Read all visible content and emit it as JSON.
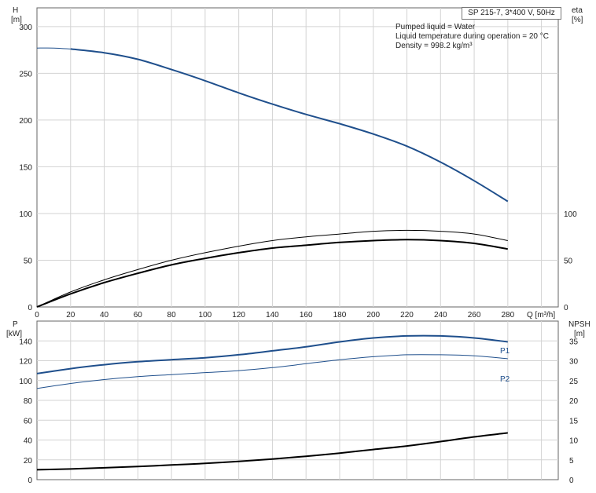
{
  "header": {
    "model": "SP 215-7, 3*400 V, 50Hz",
    "info": [
      "Pumped liquid = Water",
      "Liquid temperature during operation = 20 °C",
      "Density = 998.2 kg/m³"
    ]
  },
  "colors": {
    "head_curve": "#1f4f8c",
    "eta_curve": "#000000",
    "power_curve": "#1f4f8c",
    "npsh_curve": "#000000",
    "grid": "#d3d3d3",
    "axis": "#666666"
  },
  "chart_data": [
    {
      "type": "line",
      "panel": "top",
      "left_axis": {
        "label_top": "H",
        "label_unit": "[m]",
        "ticks": [
          "0",
          "50",
          "100",
          "150",
          "200",
          "250",
          "300"
        ],
        "ylim": [
          0,
          320
        ]
      },
      "right_axis": {
        "label_top": "eta",
        "label_unit": "[%]",
        "ticks": [
          "0",
          "50",
          "100"
        ]
      },
      "x_axis": {
        "label": "Q [m³/h]",
        "ticks": [
          "0",
          "20",
          "40",
          "60",
          "80",
          "100",
          "120",
          "140",
          "160",
          "180",
          "200",
          "220",
          "240",
          "260",
          "280"
        ],
        "xlim": [
          0,
          310
        ]
      },
      "grid": true,
      "series": [
        {
          "role": "head_extrapolated",
          "axis": "left",
          "style": "thin",
          "points": [
            [
              0,
              277
            ],
            [
              10,
              277
            ],
            [
              20,
              276
            ]
          ]
        },
        {
          "role": "head",
          "axis": "left",
          "style": "thick",
          "points": [
            [
              20,
              276
            ],
            [
              40,
              272
            ],
            [
              60,
              265
            ],
            [
              80,
              254
            ],
            [
              100,
              242
            ],
            [
              120,
              229
            ],
            [
              140,
              217
            ],
            [
              160,
              206
            ],
            [
              180,
              196
            ],
            [
              200,
              185
            ],
            [
              220,
              172
            ],
            [
              240,
              155
            ],
            [
              260,
              135
            ],
            [
              280,
              113
            ]
          ]
        },
        {
          "role": "eta_thin",
          "axis": "right",
          "style": "thin",
          "points": [
            [
              0,
              0
            ],
            [
              20,
              16
            ],
            [
              40,
              29
            ],
            [
              60,
              40
            ],
            [
              80,
              50
            ],
            [
              100,
              58
            ],
            [
              120,
              65
            ],
            [
              140,
              71
            ],
            [
              160,
              75
            ],
            [
              180,
              78
            ],
            [
              200,
              81
            ],
            [
              220,
              82
            ],
            [
              240,
              81
            ],
            [
              260,
              78
            ],
            [
              280,
              71
            ]
          ]
        },
        {
          "role": "eta_thick",
          "axis": "right",
          "style": "thick",
          "points": [
            [
              0,
              0
            ],
            [
              20,
              14
            ],
            [
              40,
              26
            ],
            [
              60,
              36
            ],
            [
              80,
              45
            ],
            [
              100,
              52
            ],
            [
              120,
              58
            ],
            [
              140,
              63
            ],
            [
              160,
              66
            ],
            [
              180,
              69
            ],
            [
              200,
              71
            ],
            [
              220,
              72
            ],
            [
              240,
              71
            ],
            [
              260,
              68
            ],
            [
              280,
              62
            ]
          ]
        }
      ]
    },
    {
      "type": "line",
      "panel": "bottom",
      "left_axis": {
        "label_top": "P",
        "label_unit": "[kW]",
        "ticks": [
          "0",
          "20",
          "40",
          "60",
          "80",
          "100",
          "120",
          "140"
        ],
        "ylim": [
          0,
          160
        ]
      },
      "right_axis": {
        "label_top": "NPSH",
        "label_unit": "[m]",
        "ticks": [
          "0",
          "5",
          "10",
          "15",
          "20",
          "25",
          "30",
          "35"
        ],
        "ylim": [
          0,
          40
        ]
      },
      "x_axis": {
        "xlim": [
          0,
          310
        ]
      },
      "grid": true,
      "series": [
        {
          "name": "P1",
          "axis": "left",
          "style": "thick",
          "points": [
            [
              0,
              107
            ],
            [
              20,
              112
            ],
            [
              40,
              116
            ],
            [
              60,
              119
            ],
            [
              80,
              121
            ],
            [
              100,
              123
            ],
            [
              120,
              126
            ],
            [
              140,
              130
            ],
            [
              160,
              134
            ],
            [
              180,
              139
            ],
            [
              200,
              143
            ],
            [
              220,
              145
            ],
            [
              240,
              145
            ],
            [
              260,
              143
            ],
            [
              280,
              139
            ]
          ]
        },
        {
          "name": "P2",
          "axis": "left",
          "style": "thin",
          "points": [
            [
              0,
              92
            ],
            [
              20,
              97
            ],
            [
              40,
              101
            ],
            [
              60,
              104
            ],
            [
              80,
              106
            ],
            [
              100,
              108
            ],
            [
              120,
              110
            ],
            [
              140,
              113
            ],
            [
              160,
              117
            ],
            [
              180,
              121
            ],
            [
              200,
              124
            ],
            [
              220,
              126
            ],
            [
              240,
              126
            ],
            [
              260,
              125
            ],
            [
              280,
              122
            ]
          ]
        },
        {
          "role": "npsh",
          "axis": "right",
          "style": "thick",
          "points": [
            [
              0,
              2.5
            ],
            [
              20,
              2.7
            ],
            [
              40,
              3.0
            ],
            [
              60,
              3.3
            ],
            [
              80,
              3.7
            ],
            [
              100,
              4.1
            ],
            [
              120,
              4.6
            ],
            [
              140,
              5.2
            ],
            [
              160,
              5.9
            ],
            [
              180,
              6.7
            ],
            [
              200,
              7.6
            ],
            [
              220,
              8.5
            ],
            [
              240,
              9.6
            ],
            [
              260,
              10.8
            ],
            [
              280,
              11.8
            ]
          ]
        }
      ]
    }
  ]
}
